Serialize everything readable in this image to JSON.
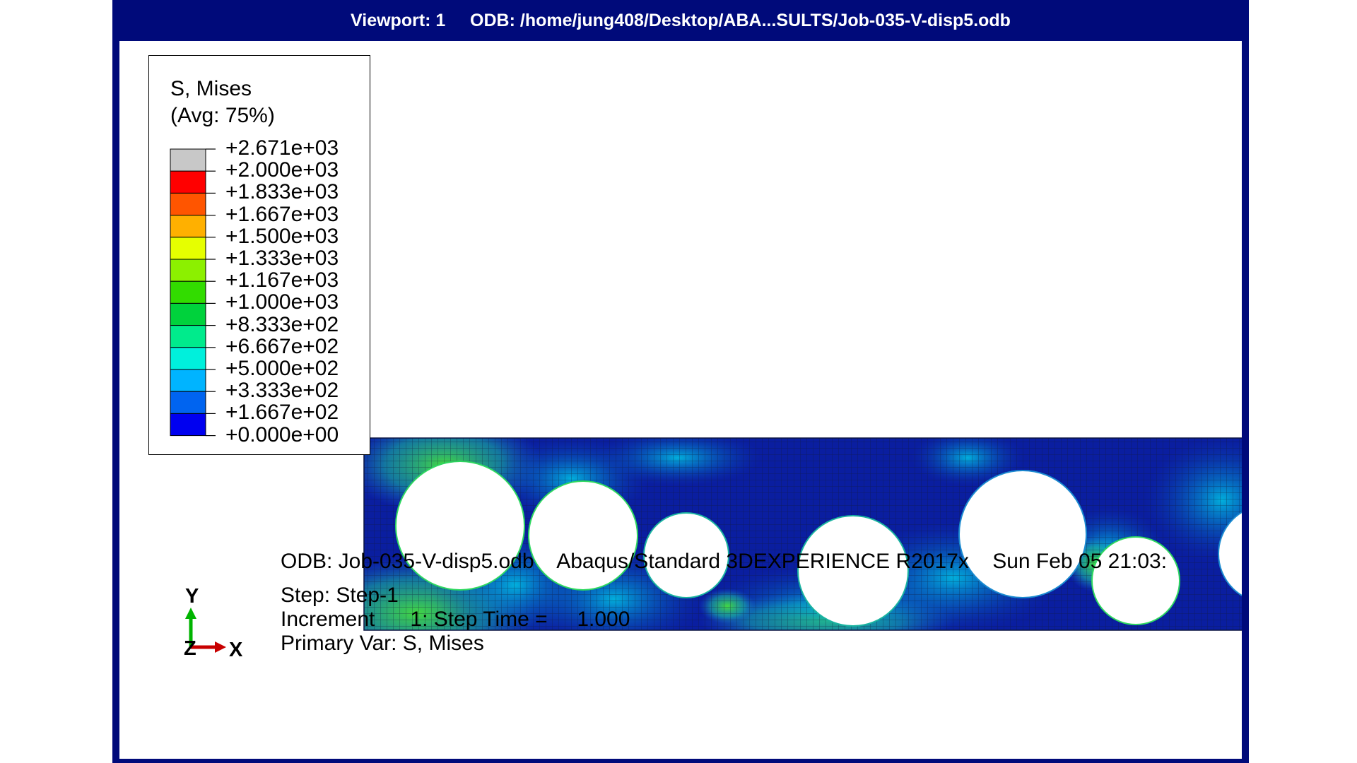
{
  "window": {
    "title": "Viewport: 1     ODB: /home/jung408/Desktop/ABA...SULTS/Job-035-V-disp5.odb"
  },
  "legend": {
    "title_line1": "S, Mises",
    "title_line2": "(Avg: 75%)",
    "labels": [
      "+2.671e+03",
      "+2.000e+03",
      "+1.833e+03",
      "+1.667e+03",
      "+1.500e+03",
      "+1.333e+03",
      "+1.167e+03",
      "+1.000e+03",
      "+8.333e+02",
      "+6.667e+02",
      "+5.000e+02",
      "+3.333e+02",
      "+1.667e+02",
      "+0.000e+00"
    ],
    "band_colors": [
      "#c8c8c8",
      "#ff0000",
      "#ff5500",
      "#ffb000",
      "#e6ff00",
      "#8cf000",
      "#32dc00",
      "#00d23c",
      "#00eb8c",
      "#00f0dc",
      "#00b4ff",
      "#0064f0",
      "#0000f0"
    ]
  },
  "model": {
    "description_colors": {
      "mesh_line": "#1a1a40",
      "low_stress": "#0a1aa8",
      "mid_stress": "#1a8ad0",
      "high_stress": "#2ed860"
    }
  },
  "info": {
    "odb_line": "ODB: Job-035-V-disp5.odb    Abaqus/Standard 3DEXPERIENCE R2017x    Sun Feb 05 21:03:",
    "step_line": "Step: Step-1",
    "increment_line": "Increment      1: Step Time =     1.000",
    "primary_var_line": "Primary Var: S, Mises"
  },
  "triad": {
    "y_label": "Y",
    "x_label": "X",
    "z_label": "Z",
    "y_color": "#00b400",
    "x_color": "#c80000"
  }
}
